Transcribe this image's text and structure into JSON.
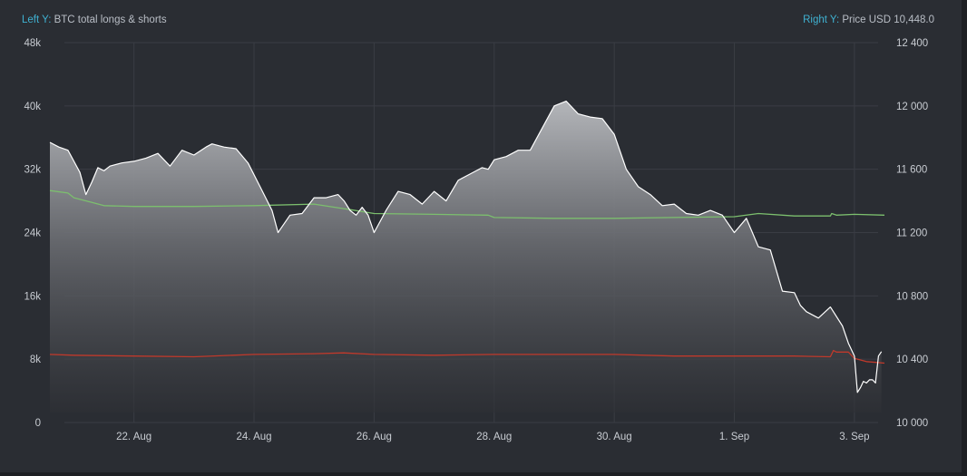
{
  "header": {
    "left_prefix": "Left Y:",
    "left_text": "BTC total longs & shorts",
    "right_prefix": "Right Y:",
    "right_text": "Price USD 10,448.0"
  },
  "colors": {
    "background": "#2a2d33",
    "accent": "#3fb1d1",
    "price_line": "#ffffff",
    "longs_line": "#7cbf6e",
    "shorts_line": "#c0392b",
    "grid": "#3a3d44"
  },
  "chart_data": {
    "type": "area",
    "left_axis": {
      "label": "BTC total longs & shorts",
      "ylim": [
        0,
        48000
      ],
      "ticks": [
        "0",
        "8k",
        "16k",
        "24k",
        "32k",
        "40k",
        "48k"
      ]
    },
    "right_axis": {
      "label": "Price USD",
      "ylim": [
        10000,
        12400
      ],
      "ticks": [
        "10 000",
        "10 400",
        "10 800",
        "11 200",
        "11 600",
        "12 000",
        "12 400"
      ]
    },
    "x_ticks": [
      "22. Aug",
      "24. Aug",
      "26. Aug",
      "28. Aug",
      "30. Aug",
      "1. Sep",
      "3. Sep"
    ],
    "x_range": [
      20.6,
      34.5
    ],
    "series": [
      {
        "name": "Price USD",
        "axis": "right",
        "style": "area",
        "x": [
          20.6,
          20.75,
          20.9,
          21.0,
          21.1,
          21.2,
          21.3,
          21.4,
          21.5,
          21.6,
          21.8,
          22.0,
          22.2,
          22.4,
          22.6,
          22.8,
          23.0,
          23.2,
          23.3,
          23.5,
          23.7,
          23.9,
          24.1,
          24.3,
          24.4,
          24.6,
          24.8,
          25.0,
          25.2,
          25.4,
          25.5,
          25.6,
          25.7,
          25.8,
          25.9,
          26.0,
          26.2,
          26.4,
          26.6,
          26.8,
          27.0,
          27.2,
          27.4,
          27.6,
          27.8,
          27.9,
          28.0,
          28.2,
          28.4,
          28.6,
          28.8,
          29.0,
          29.2,
          29.4,
          29.6,
          29.8,
          30.0,
          30.2,
          30.4,
          30.6,
          30.8,
          31.0,
          31.2,
          31.4,
          31.6,
          31.8,
          32.0,
          32.2,
          32.4,
          32.6,
          32.8,
          33.0,
          33.1,
          33.2,
          33.4,
          33.6,
          33.8,
          33.9,
          34.0,
          34.05,
          34.1,
          34.15,
          34.2,
          34.25,
          34.3,
          34.35,
          34.4,
          34.45
        ],
        "values": [
          11770,
          11740,
          11720,
          11650,
          11580,
          11440,
          11520,
          11610,
          11590,
          11620,
          11640,
          11650,
          11670,
          11700,
          11620,
          11720,
          11690,
          11740,
          11760,
          11740,
          11730,
          11640,
          11490,
          11340,
          11200,
          11310,
          11320,
          11420,
          11420,
          11440,
          11400,
          11340,
          11310,
          11360,
          11310,
          11200,
          11340,
          11460,
          11440,
          11380,
          11460,
          11400,
          11530,
          11570,
          11610,
          11600,
          11660,
          11680,
          11720,
          11720,
          11860,
          12000,
          12030,
          11950,
          11930,
          11920,
          11820,
          11600,
          11490,
          11440,
          11370,
          11380,
          11320,
          11310,
          11340,
          11310,
          11200,
          11290,
          11110,
          11090,
          10830,
          10820,
          10740,
          10700,
          10660,
          10730,
          10610,
          10500,
          10420,
          10190,
          10220,
          10260,
          10250,
          10270,
          10270,
          10250,
          10420,
          10448
        ]
      },
      {
        "name": "Longs",
        "axis": "left",
        "style": "line",
        "x": [
          20.6,
          20.9,
          21.0,
          21.3,
          21.5,
          22.0,
          23.0,
          24.0,
          25.0,
          25.6,
          26.0,
          27.0,
          27.9,
          28.0,
          29.0,
          30.0,
          31.0,
          32.0,
          32.4,
          33.0,
          33.3,
          33.6,
          33.62,
          33.7,
          34.0,
          34.5
        ],
        "values": [
          29300,
          29000,
          28400,
          27800,
          27400,
          27300,
          27300,
          27400,
          27600,
          26900,
          26400,
          26300,
          26200,
          25900,
          25800,
          25800,
          25900,
          26000,
          26400,
          26100,
          26100,
          26100,
          26400,
          26200,
          26300,
          26200
        ]
      },
      {
        "name": "Shorts",
        "axis": "left",
        "style": "line",
        "x": [
          20.6,
          21.0,
          22.0,
          23.0,
          24.0,
          25.0,
          25.5,
          26.0,
          27.0,
          28.0,
          29.0,
          30.0,
          31.0,
          32.0,
          33.0,
          33.6,
          33.65,
          33.7,
          33.9,
          34.0,
          34.2,
          34.5
        ],
        "values": [
          8600,
          8500,
          8400,
          8300,
          8600,
          8700,
          8800,
          8600,
          8500,
          8600,
          8600,
          8600,
          8400,
          8400,
          8400,
          8300,
          9100,
          8900,
          8900,
          8100,
          7700,
          7500
        ]
      }
    ]
  }
}
